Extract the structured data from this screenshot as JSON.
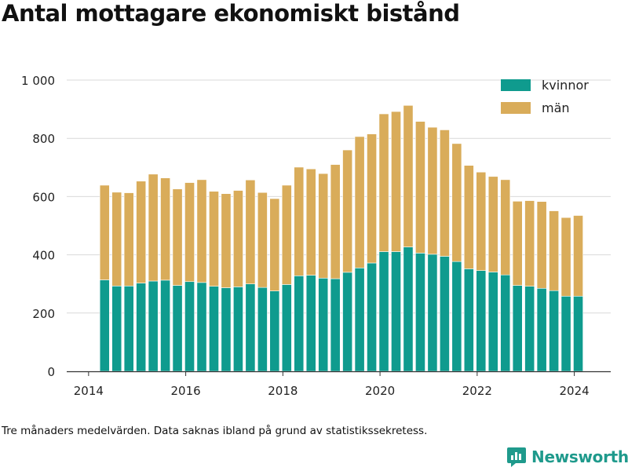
{
  "title": "Antal mottagare ekonomiskt bistånd",
  "footnote": "Tre månaders medelvärden. Data saknas ibland på grund av statistikssekretess.",
  "brand": {
    "name": "Newsworthy",
    "icon": "newsworthy-logo-icon",
    "color": "#1f9a8c"
  },
  "chart_data": {
    "type": "bar",
    "stacked": true,
    "title": "Antal mottagare ekonomiskt bistånd",
    "xlabel": "",
    "ylabel": "",
    "xlim": [
      2013.55,
      2024.75
    ],
    "ylim": [
      0,
      1000
    ],
    "x_ticks": [
      2014,
      2016,
      2018,
      2020,
      2022,
      2024
    ],
    "x_tick_labels": [
      "2014",
      "2016",
      "2018",
      "2020",
      "2022",
      "2024"
    ],
    "y_ticks": [
      0,
      200,
      400,
      600,
      800,
      1000
    ],
    "y_tick_labels": [
      "0",
      "200",
      "400",
      "600",
      "800",
      "1 000"
    ],
    "grid": true,
    "legend_position": "top-right",
    "x": [
      2014.33,
      2014.58,
      2014.83,
      2015.08,
      2015.33,
      2015.58,
      2015.83,
      2016.08,
      2016.33,
      2016.58,
      2016.83,
      2017.08,
      2017.33,
      2017.58,
      2017.83,
      2018.08,
      2018.33,
      2018.58,
      2018.83,
      2019.08,
      2019.33,
      2019.58,
      2019.83,
      2020.08,
      2020.33,
      2020.58,
      2020.83,
      2021.08,
      2021.33,
      2021.58,
      2021.83,
      2022.08,
      2022.33,
      2022.58,
      2022.83,
      2023.08,
      2023.33,
      2023.58,
      2023.83,
      2024.08
    ],
    "series": [
      {
        "name": "kvinnor",
        "color": "#0f9b8e",
        "values": [
          314,
          293,
          293,
          303,
          310,
          313,
          295,
          308,
          305,
          292,
          287,
          290,
          300,
          288,
          276,
          298,
          328,
          330,
          320,
          318,
          340,
          355,
          372,
          411,
          411,
          427,
          406,
          402,
          395,
          377,
          352,
          346,
          341,
          331,
          295,
          292,
          285,
          277,
          258,
          258
        ]
      },
      {
        "name": "män",
        "color": "#d9ac5a",
        "values": [
          325,
          322,
          320,
          350,
          367,
          351,
          331,
          340,
          353,
          326,
          323,
          331,
          357,
          326,
          317,
          341,
          373,
          365,
          359,
          392,
          420,
          451,
          443,
          473,
          481,
          486,
          452,
          436,
          434,
          405,
          355,
          338,
          328,
          327,
          289,
          294,
          298,
          274,
          270,
          277
        ]
      }
    ]
  }
}
